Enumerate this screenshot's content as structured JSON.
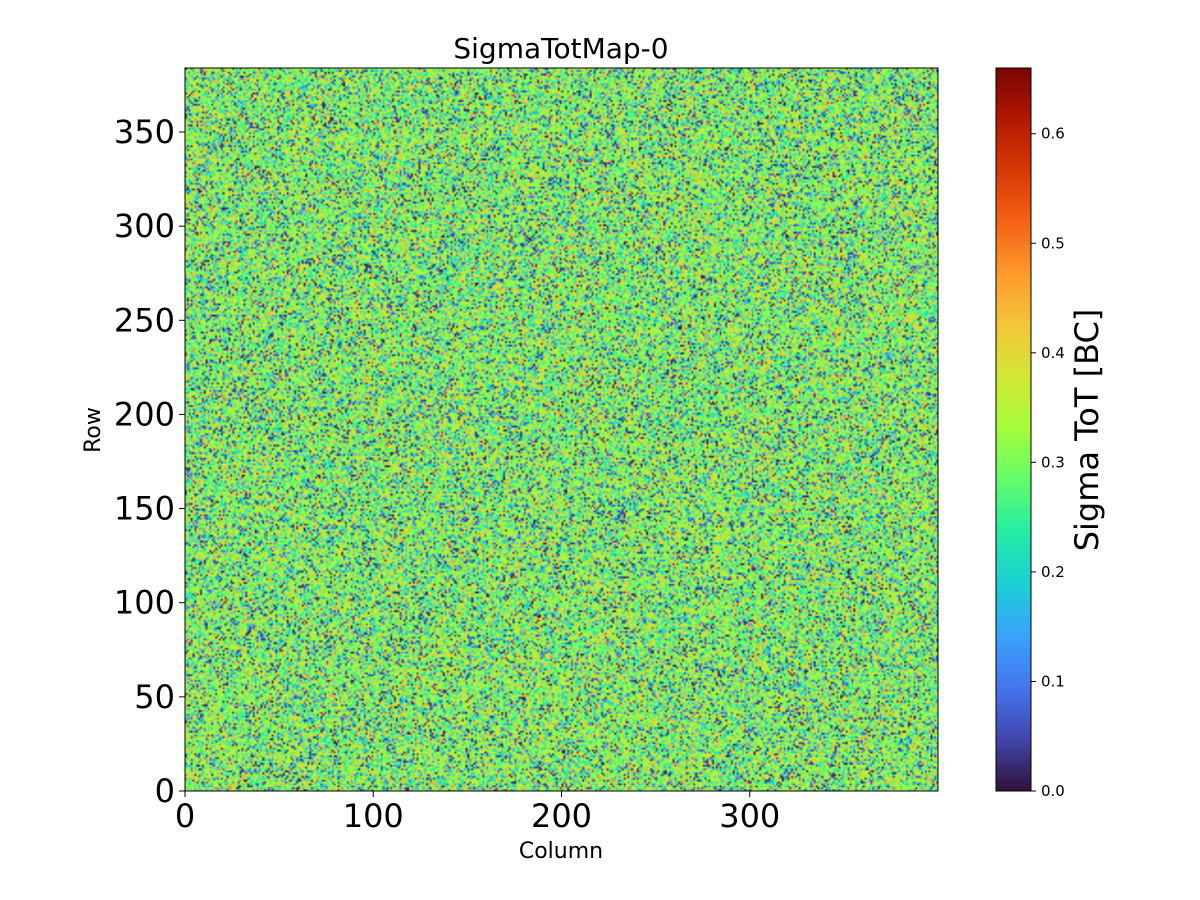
{
  "chart_data": {
    "type": "heatmap",
    "title": "SigmaTotMap-0",
    "xlabel": "Column",
    "ylabel": "Row",
    "xlim": [
      0,
      400
    ],
    "ylim": [
      0,
      384
    ],
    "xticks": [
      0,
      100,
      200,
      300
    ],
    "yticks": [
      0,
      50,
      100,
      150,
      200,
      250,
      300,
      350
    ],
    "grid": false,
    "colormap": "turbo",
    "colorbar": {
      "label": "Sigma ToT [BC]",
      "range": [
        0.0,
        0.66
      ],
      "ticks": [
        "0.0",
        "0.1",
        "0.2",
        "0.3",
        "0.4",
        "0.5",
        "0.6"
      ]
    },
    "value_distribution": "noisy pixel map, most values between 0.2 and 0.5 BC, scattered low values near 0",
    "colors": {
      "colormap_stops": [
        "#30123b",
        "#4145ab",
        "#4675ed",
        "#39a2fc",
        "#1bcfd4",
        "#24eca6",
        "#61fc6c",
        "#a4fc3b",
        "#d1e834",
        "#f3c63a",
        "#fe9b2d",
        "#f36315",
        "#d93806",
        "#b11901",
        "#7a0402"
      ]
    }
  }
}
